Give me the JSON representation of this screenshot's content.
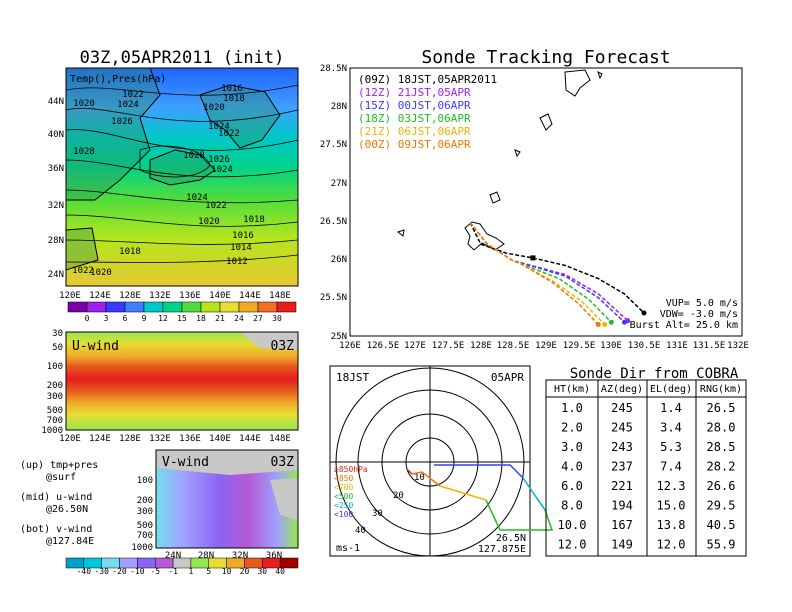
{
  "titles": {
    "left": "03Z,05APR2011 (init)",
    "right": "Sonde Tracking Forecast"
  },
  "surface_map": {
    "field_label": "Temp(),Pres(hPa)",
    "lat_labels": [
      "44N",
      "40N",
      "36N",
      "32N",
      "28N",
      "24N"
    ],
    "lon_labels": [
      "120E",
      "124E",
      "128E",
      "132E",
      "136E",
      "140E",
      "144E",
      "148E"
    ],
    "isobar_labels": [
      "1016",
      "1018",
      "1020",
      "1024",
      "1022",
      "1020",
      "1024",
      "1026",
      "1022",
      "1028",
      "1028",
      "1026",
      "1024",
      "1024",
      "1022",
      "1020",
      "1018",
      "1016",
      "1014",
      "1012",
      "1018",
      "1022",
      "1020"
    ],
    "temp_colorbar": {
      "ticks": [
        "0",
        "3",
        "6",
        "9",
        "12",
        "15",
        "18",
        "21",
        "24",
        "27",
        "30"
      ],
      "colors": [
        "#7a00a8",
        "#a020f0",
        "#3b3bff",
        "#3f7fff",
        "#00c8c8",
        "#00d28c",
        "#50dc3c",
        "#b4e61e",
        "#e6dc32",
        "#f0aa28",
        "#f06e28",
        "#e61e1e"
      ]
    }
  },
  "uwind_panel": {
    "label": "U-wind",
    "time": "03Z",
    "pressure_labels": [
      "30",
      "50",
      "100",
      "200",
      "300",
      "500",
      "700",
      "1000"
    ],
    "lon_labels": [
      "120E",
      "124E",
      "128E",
      "132E",
      "136E",
      "140E",
      "144E",
      "148E"
    ]
  },
  "vwind_panel": {
    "label": "V-wind",
    "time": "03Z",
    "pressure_labels": [
      "100",
      "200",
      "300",
      "500",
      "700",
      "1000"
    ],
    "lat_labels": [
      "24N",
      "28N",
      "32N",
      "36N"
    ]
  },
  "panel_notes": [
    {
      "label": "(up) tmp+pres",
      "sub": "@surf"
    },
    {
      "label": "(mid) u-wind",
      "sub": "@26.50N"
    },
    {
      "label": "(bot) v-wind",
      "sub": "@127.84E"
    }
  ],
  "wind_colorbar": {
    "ticks": [
      "-40",
      "-30",
      "-20",
      "-10",
      "-5",
      "-1",
      "1",
      "5",
      "10",
      "20",
      "30",
      "40"
    ],
    "colors": [
      "#00a0c8",
      "#00c8dc",
      "#78dcf0",
      "#a0a0ff",
      "#8c64f0",
      "#b45ad2",
      "#c8c8c8",
      "#96e650",
      "#e6dc32",
      "#f0aa28",
      "#e65a1e",
      "#e61e1e",
      "#a00000"
    ]
  },
  "track_map": {
    "lat_labels": [
      "28.5N",
      "28N",
      "27.5N",
      "27N",
      "26.5N",
      "26N",
      "25.5N",
      "25N"
    ],
    "lon_labels": [
      "126E",
      "126.5E",
      "127E",
      "127.5E",
      "128E",
      "128.5E",
      "129E",
      "129.5E",
      "130E",
      "130.5E",
      "131E",
      "131.5E",
      "132E"
    ],
    "legend": [
      {
        "text": "(09Z) 18JST,05APR2011",
        "color": "#000000"
      },
      {
        "text": "(12Z) 21JST,05APR",
        "color": "#a020f0"
      },
      {
        "text": "(15Z) 00JST,06APR",
        "color": "#3c3cff"
      },
      {
        "text": "(18Z) 03JST,06APR",
        "color": "#22bb22"
      },
      {
        "text": "(21Z) 06JST,06APR",
        "color": "#f0b400"
      },
      {
        "text": "(00Z) 09JST,06APR",
        "color": "#f07800"
      }
    ],
    "params": [
      {
        "text": "VUP= 5.0 m/s"
      },
      {
        "text": "VDW= -3.0 m/s"
      },
      {
        "text": "Burst Alt= 25.0 km"
      }
    ]
  },
  "polar_plot": {
    "time": "18JST",
    "date": "05APR",
    "range_labels": [
      "10",
      "20",
      "30",
      "40"
    ],
    "level_labels": [
      {
        "text": "≥850hPa",
        "color": "#e61e1e"
      },
      {
        "text": "<850",
        "color": "#f07800"
      },
      {
        "text": "<700",
        "color": "#f0b400"
      },
      {
        "text": "<500",
        "color": "#22bb22"
      },
      {
        "text": "<250",
        "color": "#00b4c8"
      },
      {
        "text": "<100",
        "color": "#3c3cff"
      }
    ],
    "unit": "ms-1",
    "location": [
      "26.5N",
      "127.875E"
    ]
  },
  "cobra_table": {
    "title": "Sonde Dir from COBRA",
    "headers": [
      "HT(km)",
      "AZ(deg)",
      "EL(deg)",
      "RNG(km)"
    ],
    "rows": [
      [
        "1.0",
        "245",
        "1.4",
        "26.5"
      ],
      [
        "2.0",
        "245",
        "3.4",
        "28.0"
      ],
      [
        "3.0",
        "243",
        "5.3",
        "28.5"
      ],
      [
        "4.0",
        "237",
        "7.4",
        "28.2"
      ],
      [
        "6.0",
        "221",
        "12.3",
        "26.6"
      ],
      [
        "8.0",
        "194",
        "15.0",
        "29.5"
      ],
      [
        "10.0",
        "167",
        "13.8",
        "40.5"
      ],
      [
        "12.0",
        "149",
        "12.0",
        "55.9"
      ]
    ]
  },
  "chart_data": [
    {
      "type": "line",
      "title": "Sonde Tracking Forecast",
      "xlim": [
        126,
        132
      ],
      "ylim": [
        25,
        28.5
      ],
      "series": [
        {
          "name": "(09Z) 18JST,05APR2011",
          "x": [
            127.84,
            128.0,
            128.4,
            128.8,
            129.3,
            129.8,
            130.2,
            130.5
          ],
          "y": [
            26.48,
            26.2,
            26.08,
            26.02,
            25.92,
            25.75,
            25.55,
            25.3
          ]
        },
        {
          "name": "(12Z) 21JST,05APR",
          "x": [
            127.84,
            128.1,
            128.5,
            128.65,
            129.3,
            129.8,
            130.25
          ],
          "y": [
            26.48,
            26.2,
            25.98,
            25.95,
            25.8,
            25.55,
            25.2
          ]
        },
        {
          "name": "(15Z) 00JST,06APR",
          "x": [
            127.84,
            128.1,
            128.5,
            128.65,
            129.3,
            129.8,
            130.2
          ],
          "y": [
            26.48,
            26.2,
            25.98,
            25.95,
            25.78,
            25.5,
            25.18
          ]
        },
        {
          "name": "(18Z) 03JST,06APR",
          "x": [
            127.84,
            128.1,
            128.5,
            128.6,
            129.2,
            129.65,
            130.0
          ],
          "y": [
            26.48,
            26.2,
            25.98,
            25.95,
            25.75,
            25.48,
            25.18
          ]
        },
        {
          "name": "(21Z) 06JST,06APR",
          "x": [
            127.84,
            128.1,
            128.5,
            128.6,
            129.1,
            129.55,
            129.9
          ],
          "y": [
            26.48,
            26.2,
            25.98,
            25.95,
            25.72,
            25.45,
            25.15
          ]
        },
        {
          "name": "(00Z) 09JST,06APR",
          "x": [
            127.84,
            128.1,
            128.5,
            128.6,
            129.1,
            129.5,
            129.8
          ],
          "y": [
            26.48,
            26.2,
            25.98,
            25.95,
            25.7,
            25.42,
            25.15
          ]
        }
      ]
    },
    {
      "type": "table",
      "title": "Sonde Dir from COBRA",
      "columns": [
        "HT(km)",
        "AZ(deg)",
        "EL(deg)",
        "RNG(km)"
      ],
      "rows": [
        [
          1.0,
          245,
          1.4,
          26.5
        ],
        [
          2.0,
          245,
          3.4,
          28.0
        ],
        [
          3.0,
          243,
          5.3,
          28.5
        ],
        [
          4.0,
          237,
          7.4,
          28.2
        ],
        [
          6.0,
          221,
          12.3,
          26.6
        ],
        [
          8.0,
          194,
          15.0,
          29.5
        ],
        [
          10.0,
          167,
          13.8,
          40.5
        ],
        [
          12.0,
          149,
          12.0,
          55.9
        ]
      ]
    }
  ]
}
